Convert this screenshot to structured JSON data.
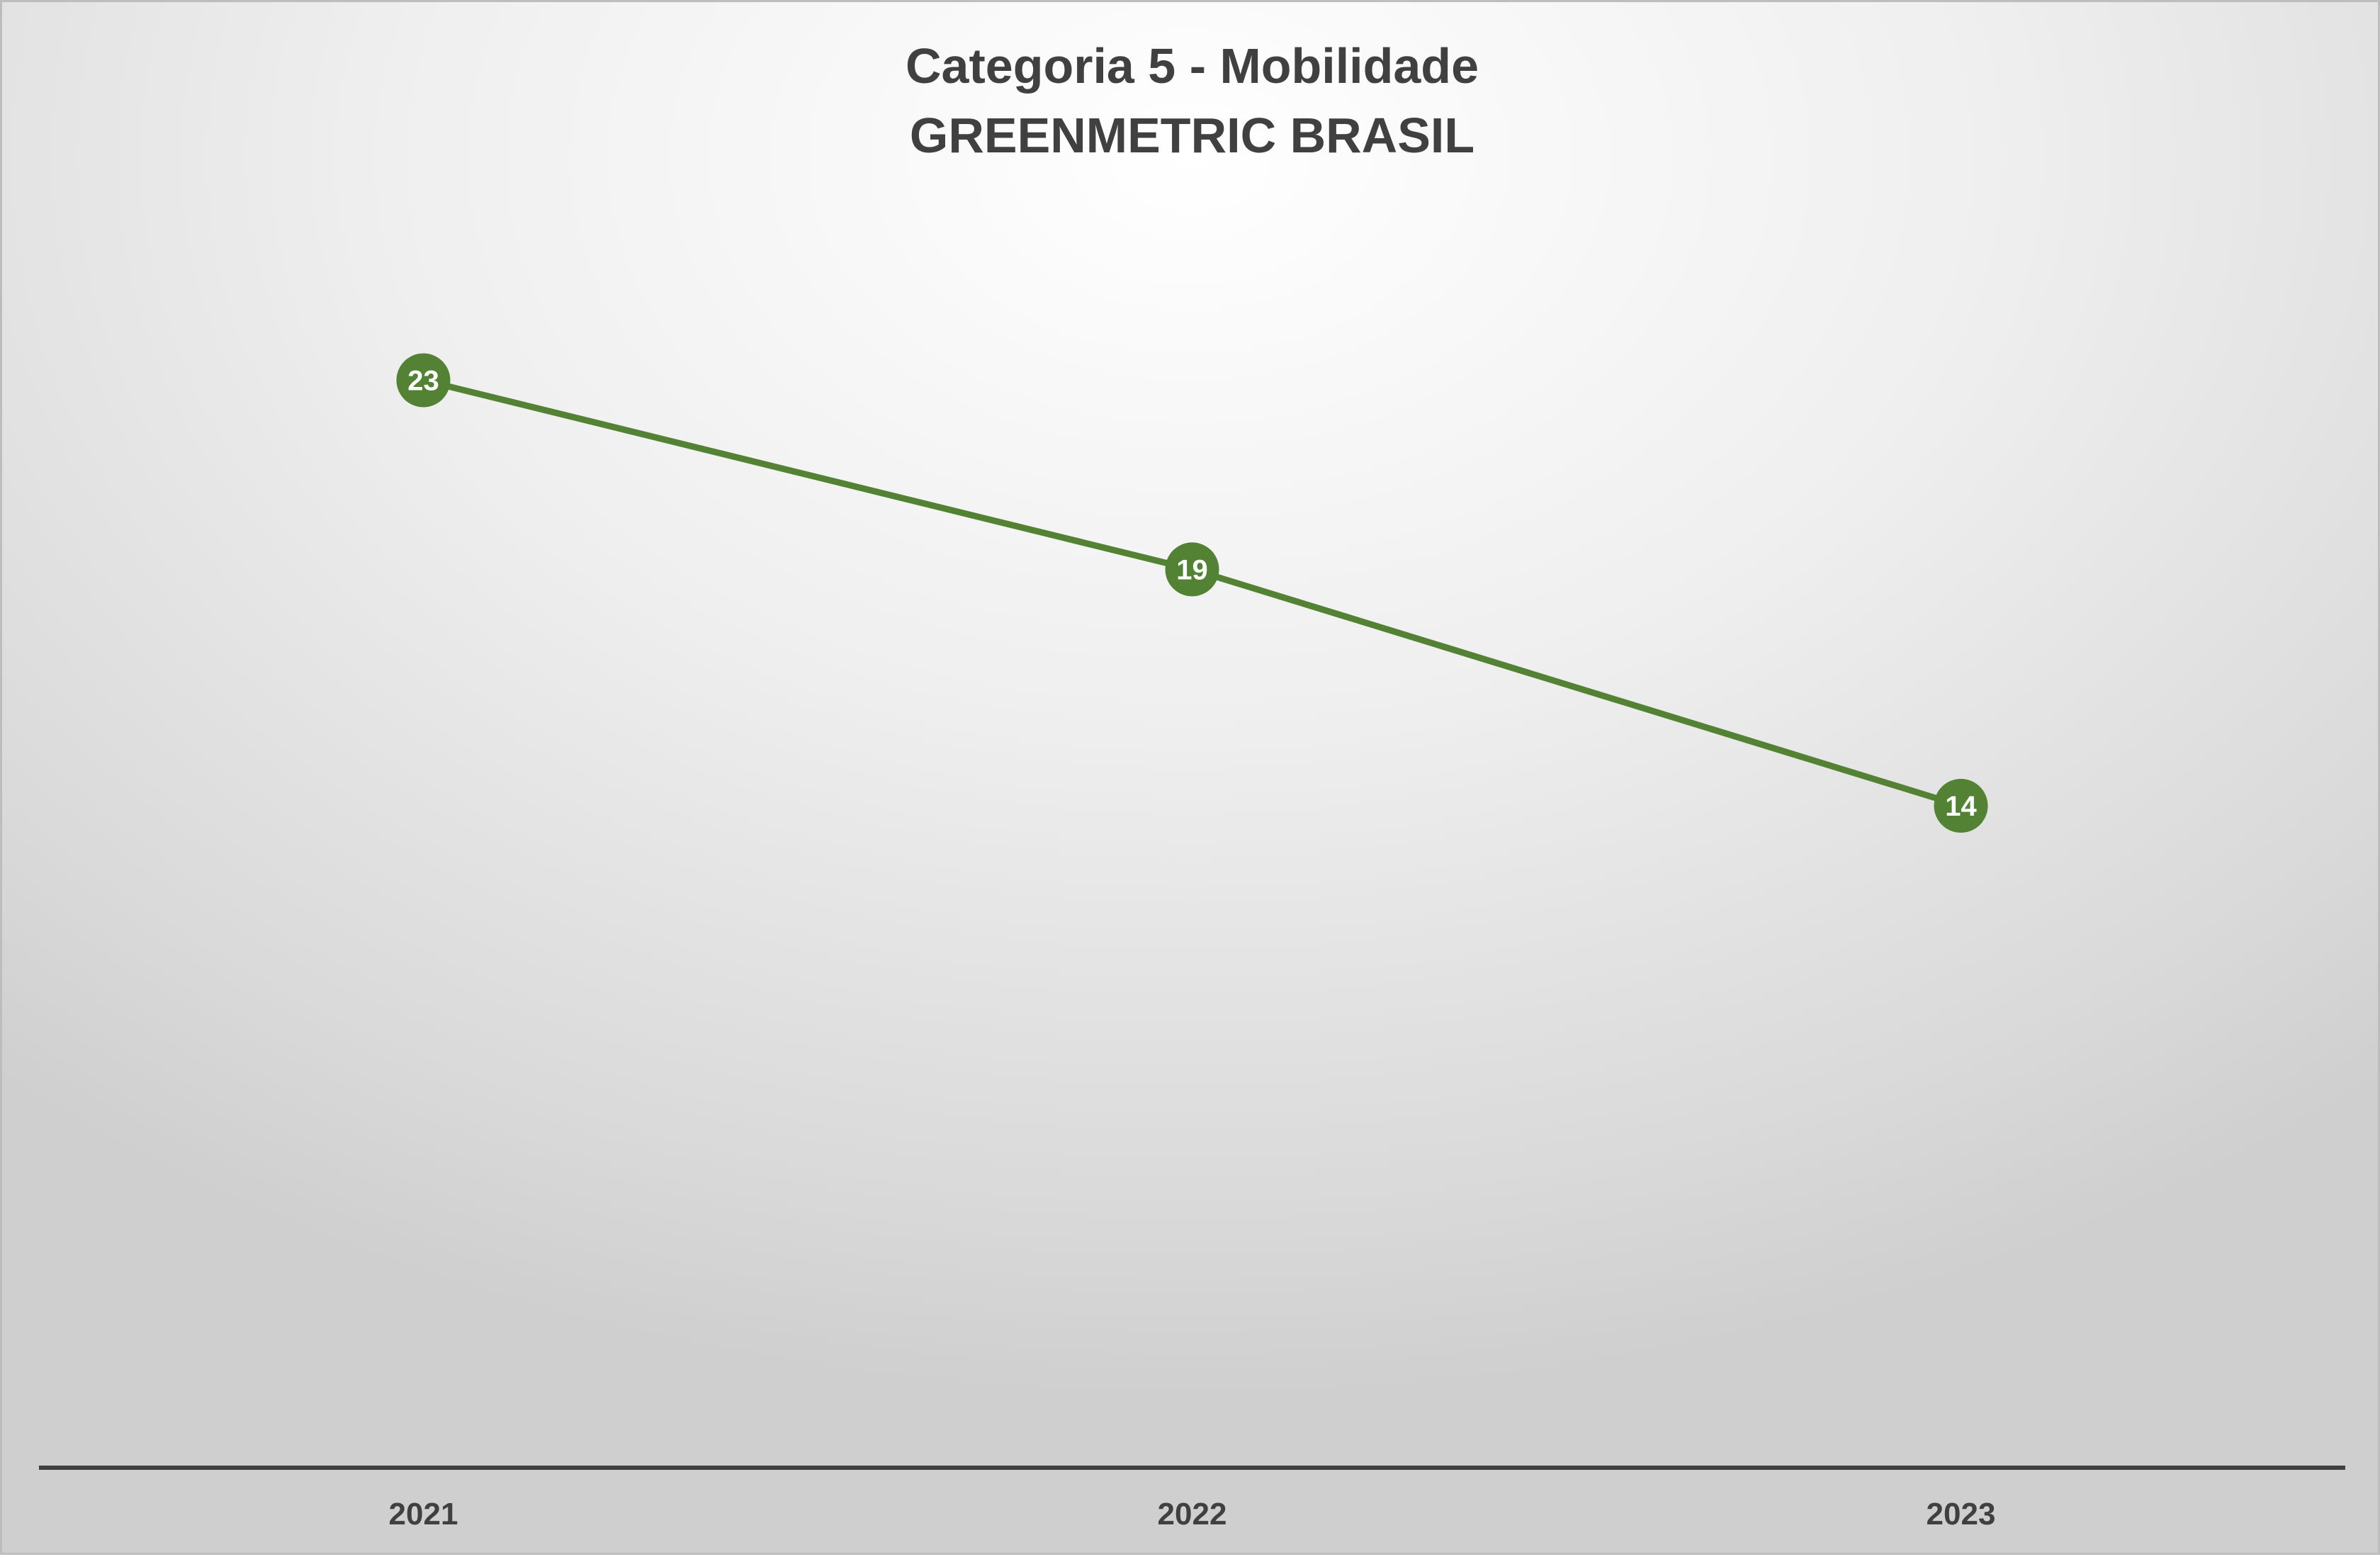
{
  "chart_data": {
    "type": "line",
    "title": "Categoria 5 - Mobilidade",
    "subtitle": "GREENMETRIC BRASIL",
    "categories": [
      "2021",
      "2022",
      "2023"
    ],
    "series": [
      {
        "values": [
          23,
          19,
          14
        ]
      }
    ],
    "xlabel": "",
    "ylabel": "",
    "ylim": [
      0,
      28
    ],
    "grid": false,
    "legend": "none",
    "data_labels": true,
    "colors": {
      "line": "#548235",
      "marker": "#548235",
      "label_text": "#ffffff",
      "axis": "#404040",
      "title": "#404040"
    }
  }
}
